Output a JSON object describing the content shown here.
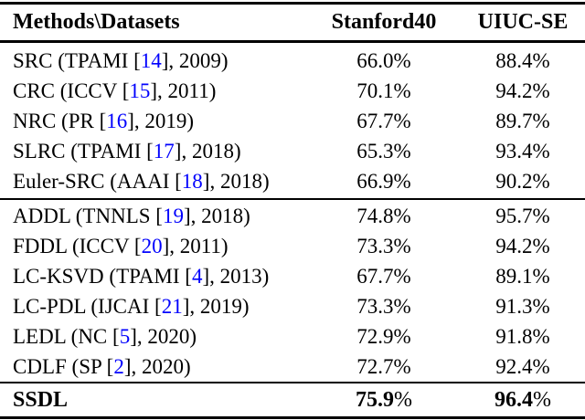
{
  "colors": {
    "text": "#000000",
    "background": "#ffffff",
    "citation_link": "#0101fd",
    "rule": "#000000"
  },
  "table": {
    "columns": {
      "methods": "Methods\\Datasets",
      "stanford40": "Stanford40",
      "uiuc_se": "UIUC-SE"
    },
    "groups": [
      {
        "rows": [
          {
            "pre": "SRC (TPAMI [",
            "cite": "14",
            "post": "], 2009)",
            "stanford40": "66.0%",
            "uiuc_se": "88.4%"
          },
          {
            "pre": "CRC (ICCV [",
            "cite": "15",
            "post": "], 2011)",
            "stanford40": "70.1%",
            "uiuc_se": "94.2%"
          },
          {
            "pre": "NRC (PR [",
            "cite": "16",
            "post": "], 2019)",
            "stanford40": "67.7%",
            "uiuc_se": "89.7%"
          },
          {
            "pre": "SLRC (TPAMI [",
            "cite": "17",
            "post": "], 2018)",
            "stanford40": "65.3%",
            "uiuc_se": "93.4%"
          },
          {
            "pre": "Euler-SRC (AAAI [",
            "cite": "18",
            "post": "], 2018)",
            "stanford40": "66.9%",
            "uiuc_se": "90.2%"
          }
        ]
      },
      {
        "rows": [
          {
            "pre": "ADDL (TNNLS [",
            "cite": "19",
            "post": "], 2018)",
            "stanford40": "74.8%",
            "uiuc_se": "95.7%"
          },
          {
            "pre": "FDDL (ICCV [",
            "cite": "20",
            "post": "], 2011)",
            "stanford40": "73.3%",
            "uiuc_se": "94.2%"
          },
          {
            "pre": "LC-KSVD (TPAMI [",
            "cite": "4",
            "post": "], 2013)",
            "stanford40": "67.7%",
            "uiuc_se": "89.1%"
          },
          {
            "pre": "LC-PDL (IJCAI [",
            "cite": "21",
            "post": "], 2019)",
            "stanford40": "73.3%",
            "uiuc_se": "91.3%"
          },
          {
            "pre": "LEDL (NC [",
            "cite": "5",
            "post": "], 2020)",
            "stanford40": "72.9%",
            "uiuc_se": "91.8%"
          },
          {
            "pre": "CDLF (SP [",
            "cite": "2",
            "post": "], 2020)",
            "stanford40": "72.7%",
            "uiuc_se": "92.4%"
          }
        ]
      }
    ],
    "footer": {
      "method": "SSDL",
      "stanford40_value": "75.9",
      "uiuc_se_value": "96.4",
      "unit": "%"
    }
  }
}
